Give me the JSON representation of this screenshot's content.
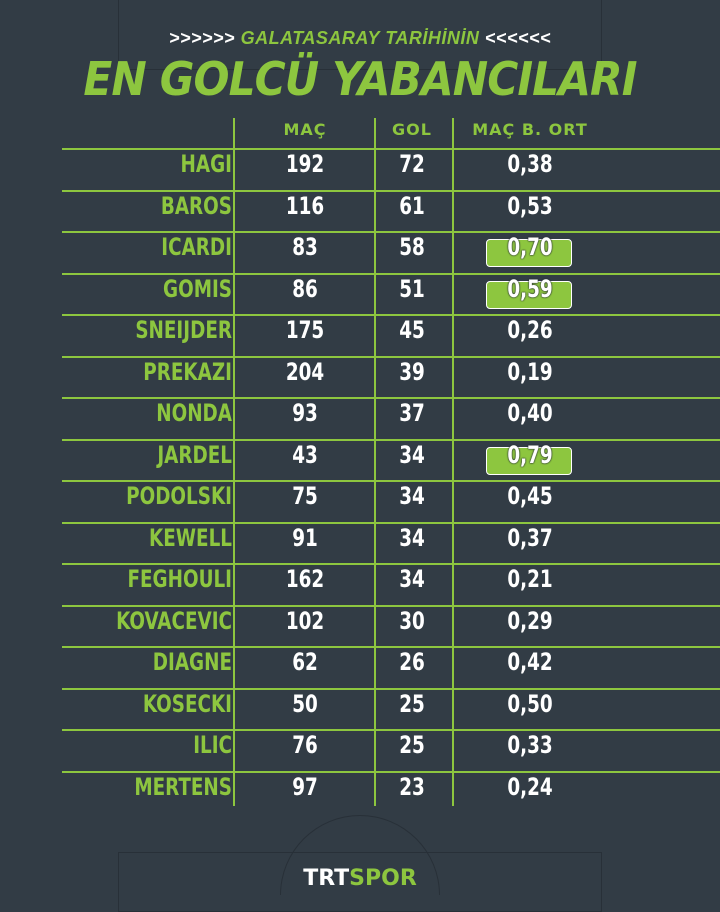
{
  "header": {
    "arrows_left": ">>>>>>",
    "subtitle": "GALATASARAY TARİHİNİN",
    "arrows_right": "<<<<<<",
    "title": "EN GOLCÜ YABANCILARI"
  },
  "columns": [
    "MAÇ",
    "GOL",
    "MAÇ B. ORT"
  ],
  "rows": [
    {
      "name": "HAGI",
      "mac": "192",
      "gol": "72",
      "ort": "0,38",
      "highlight": false
    },
    {
      "name": "BAROS",
      "mac": "116",
      "gol": "61",
      "ort": "0,53",
      "highlight": false
    },
    {
      "name": "ICARDI",
      "mac": "83",
      "gol": "58",
      "ort": "0,70",
      "highlight": true
    },
    {
      "name": "GOMIS",
      "mac": "86",
      "gol": "51",
      "ort": "0,59",
      "highlight": true
    },
    {
      "name": "SNEIJDER",
      "mac": "175",
      "gol": "45",
      "ort": "0,26",
      "highlight": false
    },
    {
      "name": "PREKAZI",
      "mac": "204",
      "gol": "39",
      "ort": "0,19",
      "highlight": false
    },
    {
      "name": "NONDA",
      "mac": "93",
      "gol": "37",
      "ort": "0,40",
      "highlight": false
    },
    {
      "name": "JARDEL",
      "mac": "43",
      "gol": "34",
      "ort": "0,79",
      "highlight": true
    },
    {
      "name": "PODOLSKI",
      "mac": "75",
      "gol": "34",
      "ort": "0,45",
      "highlight": false
    },
    {
      "name": "KEWELL",
      "mac": "91",
      "gol": "34",
      "ort": "0,37",
      "highlight": false
    },
    {
      "name": "FEGHOULI",
      "mac": "162",
      "gol": "34",
      "ort": "0,21",
      "highlight": false
    },
    {
      "name": "KOVACEVIC",
      "mac": "102",
      "gol": "30",
      "ort": "0,29",
      "highlight": false
    },
    {
      "name": "DIAGNE",
      "mac": "62",
      "gol": "26",
      "ort": "0,42",
      "highlight": false
    },
    {
      "name": "KOSECKI",
      "mac": "50",
      "gol": "25",
      "ort": "0,50",
      "highlight": false
    },
    {
      "name": "ILIC",
      "mac": "76",
      "gol": "25",
      "ort": "0,33",
      "highlight": false
    },
    {
      "name": "MERTENS",
      "mac": "97",
      "gol": "23",
      "ort": "0,24",
      "highlight": false
    }
  ],
  "logo": {
    "part1": "TRT",
    "part2": "SPOR"
  },
  "colors": {
    "background": "#323c45",
    "accent": "#8dc63f",
    "text": "#ffffff"
  }
}
